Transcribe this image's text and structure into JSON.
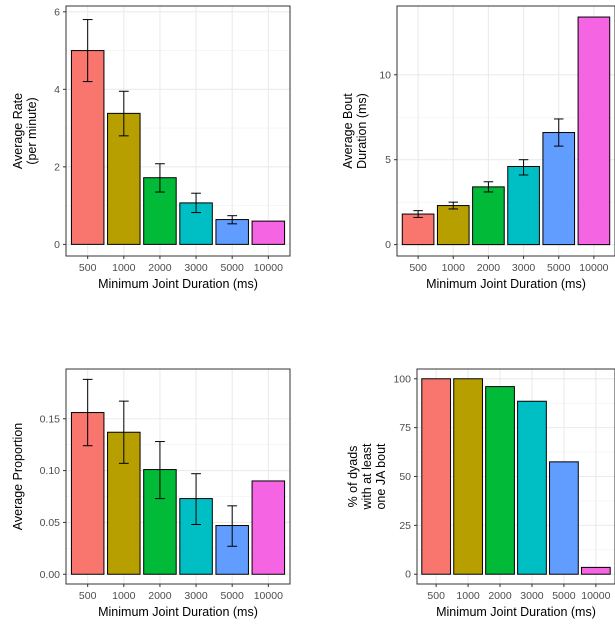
{
  "chart_data": [
    {
      "type": "bar",
      "categories": [
        "500",
        "1000",
        "2000",
        "3000",
        "5000",
        "10000"
      ],
      "values": [
        5.0,
        3.38,
        1.72,
        1.07,
        0.64,
        0.6
      ],
      "error_low": [
        4.2,
        2.8,
        1.35,
        0.82,
        0.53,
        0.6
      ],
      "error_high": [
        5.8,
        3.95,
        2.08,
        1.32,
        0.74,
        0.6
      ],
      "colors": [
        "#F8766D",
        "#B79F00",
        "#00BA38",
        "#00BFC4",
        "#619CFF",
        "#F564E3"
      ],
      "xlabel": "Minimum Joint Duration (ms)",
      "ylabel_lines": [
        "Average Rate",
        "(per minute)"
      ],
      "ylim": [
        -0.3,
        6.15
      ],
      "yticks": [
        0,
        2,
        4,
        6
      ],
      "ytick_labels": [
        "0",
        "2",
        "4",
        "6"
      ],
      "grid": true,
      "legend": "none"
    },
    {
      "type": "bar",
      "categories": [
        "500",
        "1000",
        "2000",
        "3000",
        "5000",
        "10000"
      ],
      "values": [
        1.8,
        2.3,
        3.4,
        4.6,
        6.6,
        13.4
      ],
      "error_low": [
        1.6,
        2.1,
        3.1,
        4.1,
        5.8,
        13.4
      ],
      "error_high": [
        2.0,
        2.5,
        3.7,
        5.0,
        7.4,
        13.4
      ],
      "colors": [
        "#F8766D",
        "#B79F00",
        "#00BA38",
        "#00BFC4",
        "#619CFF",
        "#F564E3"
      ],
      "xlabel": "Minimum Joint Duration (ms)",
      "ylabel_lines": [
        "Average Bout",
        "Duration (ms)"
      ],
      "ylim": [
        -0.67,
        14.05
      ],
      "yticks": [
        0,
        5,
        10
      ],
      "ytick_labels": [
        "0",
        "5",
        "10"
      ],
      "grid": true,
      "legend": "none"
    },
    {
      "type": "bar",
      "categories": [
        "500",
        "1000",
        "2000",
        "3000",
        "5000",
        "10000"
      ],
      "values": [
        0.156,
        0.137,
        0.101,
        0.073,
        0.047,
        0.09
      ],
      "error_low": [
        0.124,
        0.107,
        0.073,
        0.048,
        0.027,
        0.09
      ],
      "error_high": [
        0.188,
        0.167,
        0.128,
        0.097,
        0.066,
        0.09
      ],
      "colors": [
        "#F8766D",
        "#B79F00",
        "#00BA38",
        "#00BFC4",
        "#619CFF",
        "#F564E3"
      ],
      "xlabel": "Minimum Joint Duration (ms)",
      "ylabel_lines": [
        "Average Proportion"
      ],
      "ylim": [
        -0.0094,
        0.198
      ],
      "yticks": [
        0.0,
        0.05,
        0.1,
        0.15
      ],
      "ytick_labels": [
        "0.00",
        "0.05",
        "0.10",
        "0.15"
      ],
      "grid": true,
      "legend": "none"
    },
    {
      "type": "bar",
      "categories": [
        "500",
        "1000",
        "2000",
        "3000",
        "5000",
        "10000"
      ],
      "values": [
        100,
        100,
        96,
        88.5,
        57.5,
        3.5
      ],
      "colors": [
        "#F8766D",
        "#B79F00",
        "#00BA38",
        "#00BFC4",
        "#619CFF",
        "#F564E3"
      ],
      "xlabel": "Minimum Joint Duration (ms)",
      "ylabel_lines": [
        "% of dyads",
        "with at least",
        "one JA bout"
      ],
      "ylim": [
        -5,
        105
      ],
      "yticks": [
        0,
        25,
        50,
        75,
        100
      ],
      "ytick_labels": [
        "0",
        "25",
        "50",
        "75",
        "100"
      ],
      "grid": true,
      "legend": "none"
    }
  ]
}
